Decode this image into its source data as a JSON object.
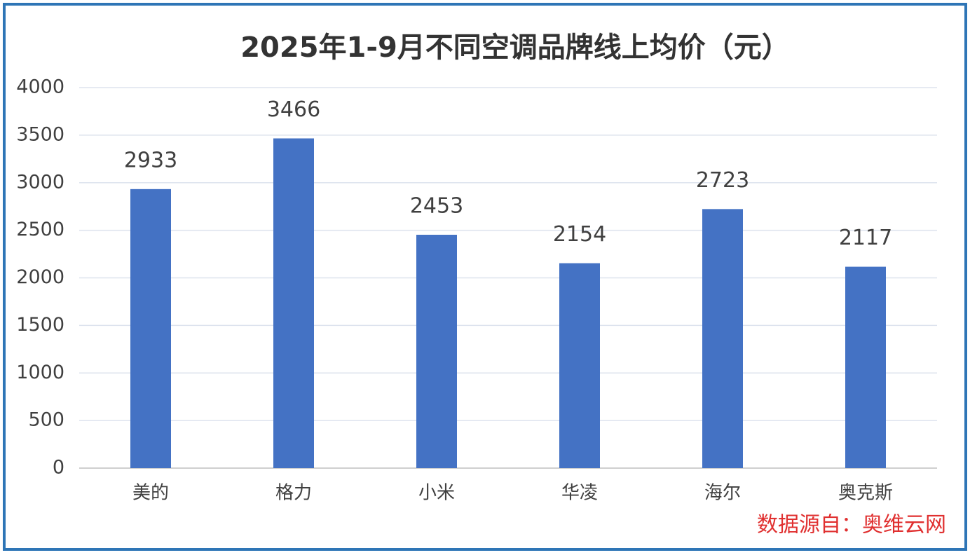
{
  "chart_data": {
    "type": "bar",
    "title": "2025年1-9月不同空调品牌线上均价（元）",
    "categories": [
      "美的",
      "格力",
      "小米",
      "华凌",
      "海尔",
      "奥克斯"
    ],
    "values": [
      2933,
      3466,
      2453,
      2154,
      2723,
      2117
    ],
    "color": "#4472c4",
    "ylim": [
      0,
      4000
    ],
    "yticks": [
      0,
      500,
      1000,
      1500,
      2000,
      2500,
      3000,
      3500,
      4000
    ],
    "grid": true,
    "source": "数据源自：奥维云网"
  }
}
